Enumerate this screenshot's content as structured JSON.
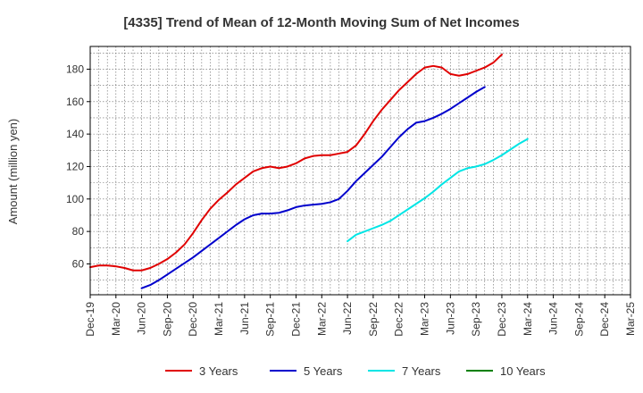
{
  "chart_data": {
    "type": "line",
    "title": "[4335]  Trend of Mean of 12-Month Moving Sum of Net Incomes",
    "ylabel": "Amount (million yen)",
    "xlabel": "",
    "ylim": [
      41,
      194
    ],
    "yticks": [
      60,
      80,
      100,
      120,
      140,
      160,
      180
    ],
    "grid": true,
    "legend_position": "bottom",
    "x_tick_labels": [
      "Dec-19",
      "Mar-20",
      "Jun-20",
      "Sep-20",
      "Dec-20",
      "Mar-21",
      "Jun-21",
      "Sep-21",
      "Dec-21",
      "Mar-22",
      "Jun-22",
      "Sep-22",
      "Dec-22",
      "Mar-23",
      "Jun-23",
      "Sep-23",
      "Dec-23",
      "Mar-24",
      "Jun-24",
      "Sep-24",
      "Dec-24",
      "Mar-25"
    ],
    "series": [
      {
        "name": "3 Years",
        "color": "#e00000",
        "start_index": 0,
        "values": [
          58,
          59,
          59,
          58.5,
          57.5,
          56,
          56,
          57.5,
          60,
          63,
          67,
          72,
          79,
          87,
          94,
          99.5,
          104,
          109,
          113,
          117,
          119,
          120,
          119,
          120,
          122,
          125,
          126.5,
          127,
          127,
          128,
          129,
          133,
          140,
          148,
          155,
          161,
          167,
          172,
          177,
          181,
          182,
          181,
          177,
          176,
          177,
          179,
          181,
          184,
          189
        ]
      },
      {
        "name": "5 Years",
        "color": "#0000cc",
        "start_index": 6,
        "values": [
          45,
          47,
          50,
          53.5,
          57,
          60.5,
          64,
          68,
          72,
          76,
          80,
          84,
          87.5,
          90,
          91,
          91,
          91.5,
          93,
          95,
          96,
          96.5,
          97,
          98,
          100,
          105,
          111,
          116,
          121,
          126,
          132,
          138,
          143,
          147,
          148,
          150,
          152.5,
          155.5,
          159,
          162.5,
          166,
          169
        ]
      },
      {
        "name": "7 Years",
        "color": "#00e5e5",
        "start_index": 30,
        "values": [
          74,
          78,
          80,
          82,
          84,
          86.5,
          90,
          93.5,
          97,
          100.5,
          104.5,
          109,
          113,
          117,
          119,
          120,
          121.5,
          124,
          127,
          130.5,
          134,
          137
        ]
      },
      {
        "name": "10 Years",
        "color": "#008000",
        "start_index": 0,
        "values": []
      }
    ]
  }
}
